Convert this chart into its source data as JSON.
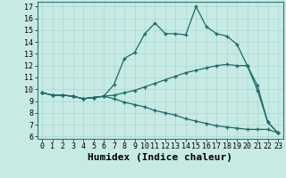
{
  "xlabel": "Humidex (Indice chaleur)",
  "bg_color": "#c8eae4",
  "line_color": "#1a6b6b",
  "xlim": [
    -0.5,
    23.5
  ],
  "ylim": [
    5.8,
    17.4
  ],
  "xticks": [
    0,
    1,
    2,
    3,
    4,
    5,
    6,
    7,
    8,
    9,
    10,
    11,
    12,
    13,
    14,
    15,
    16,
    17,
    18,
    19,
    20,
    21,
    22,
    23
  ],
  "yticks": [
    6,
    7,
    8,
    9,
    10,
    11,
    12,
    13,
    14,
    15,
    16,
    17
  ],
  "lines": [
    {
      "x": [
        0,
        1,
        2,
        3,
        4,
        5,
        6,
        7,
        8,
        9,
        10,
        11,
        12,
        13,
        14,
        15,
        16,
        17,
        18,
        19,
        20,
        21,
        22,
        23
      ],
      "y": [
        9.7,
        9.5,
        9.5,
        9.4,
        9.2,
        9.3,
        9.4,
        10.4,
        12.6,
        13.1,
        14.7,
        15.6,
        14.7,
        14.7,
        14.6,
        17.0,
        15.3,
        14.7,
        14.5,
        13.8,
        12.0,
        9.9,
        7.2,
        6.3
      ]
    },
    {
      "x": [
        0,
        1,
        2,
        3,
        4,
        5,
        6,
        7,
        8,
        9,
        10,
        11,
        12,
        13,
        14,
        15,
        16,
        17,
        18,
        19,
        20,
        21,
        22,
        23
      ],
      "y": [
        9.7,
        9.5,
        9.5,
        9.4,
        9.2,
        9.3,
        9.4,
        9.5,
        9.7,
        9.9,
        10.2,
        10.5,
        10.8,
        11.1,
        11.4,
        11.6,
        11.8,
        12.0,
        12.1,
        12.0,
        12.0,
        10.3,
        7.2,
        6.3
      ]
    },
    {
      "x": [
        0,
        1,
        2,
        3,
        4,
        5,
        6,
        7,
        8,
        9,
        10,
        11,
        12,
        13,
        14,
        15,
        16,
        17,
        18,
        19,
        20,
        21,
        22,
        23
      ],
      "y": [
        9.7,
        9.5,
        9.5,
        9.4,
        9.2,
        9.3,
        9.4,
        9.2,
        8.9,
        8.7,
        8.5,
        8.2,
        8.0,
        7.8,
        7.5,
        7.3,
        7.1,
        6.9,
        6.8,
        6.7,
        6.6,
        6.6,
        6.6,
        6.3
      ]
    }
  ],
  "grid_color": "#a8d8d0",
  "tick_fontsize": 6,
  "xlabel_fontsize": 8
}
